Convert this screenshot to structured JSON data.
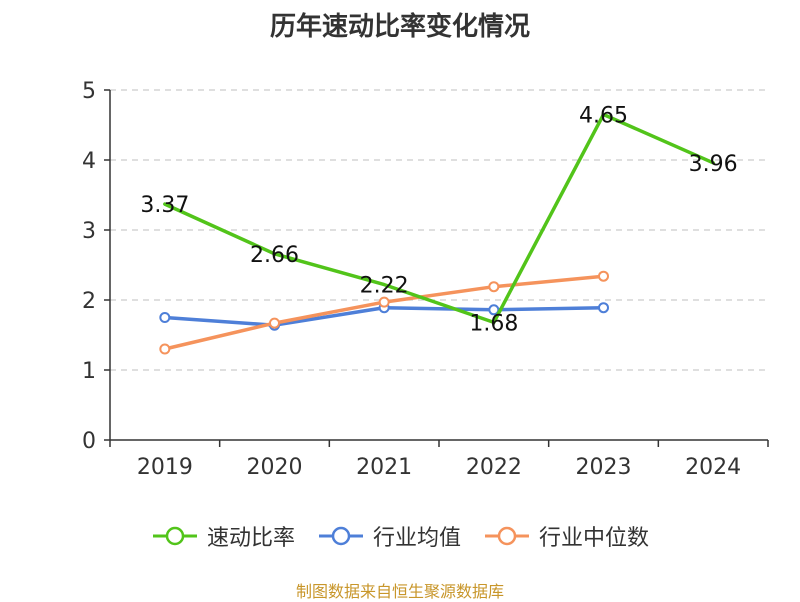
{
  "chart_data": {
    "type": "line",
    "title": "历年速动比率变化情况",
    "categories": [
      "2019",
      "2020",
      "2021",
      "2022",
      "2023",
      "2024"
    ],
    "ylim": [
      0,
      5
    ],
    "yticks": [
      "0",
      "1",
      "2",
      "3",
      "4",
      "5"
    ],
    "grid": true,
    "legend_position": "bottom",
    "series": [
      {
        "name": "速动比率",
        "color": "#52c41a",
        "values": [
          3.37,
          2.66,
          2.22,
          1.68,
          4.65,
          3.96
        ],
        "labels": [
          "3.37",
          "2.66",
          "2.22",
          "1.68",
          "4.65",
          "3.96"
        ],
        "show_markers": false
      },
      {
        "name": "行业均值",
        "color": "#4e7fd8",
        "values": [
          1.75,
          1.64,
          1.89,
          1.86,
          1.89,
          null
        ],
        "show_markers": true
      },
      {
        "name": "行业中位数",
        "color": "#f5935c",
        "values": [
          1.3,
          1.67,
          1.97,
          2.19,
          2.34,
          null
        ],
        "show_markers": true
      }
    ]
  },
  "source_text": "制图数据来自恒生聚源数据库",
  "source_color": "#c8962a",
  "axis_color": "#333333",
  "grid_color": "#cccccc"
}
